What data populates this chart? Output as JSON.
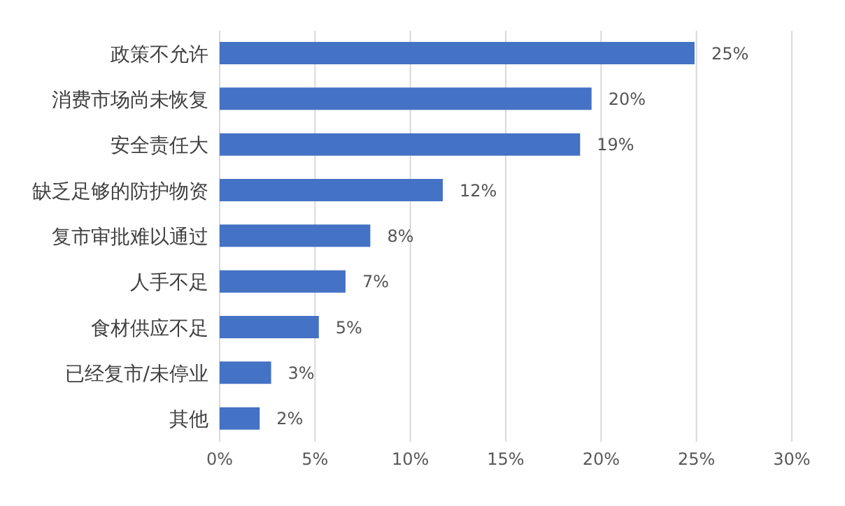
{
  "chart_data": {
    "type": "bar",
    "orientation": "horizontal",
    "categories": [
      "政策不允许",
      "消费市场尚未恢复",
      "安全责任大",
      "缺乏足够的防护物资",
      "复市审批难以通过",
      "人手不足",
      "食材供应不足",
      "已经复市/未停业",
      "其他"
    ],
    "values": [
      24.9,
      19.5,
      18.9,
      11.7,
      7.9,
      6.6,
      5.2,
      2.7,
      2.1
    ],
    "value_labels": [
      "25%",
      "20%",
      "19%",
      "12%",
      "8%",
      "7%",
      "5%",
      "3%",
      "2%"
    ],
    "color": "#4472c4",
    "xlim": [
      0,
      30
    ],
    "xticks": [
      {
        "value": 0,
        "label": "0%"
      },
      {
        "value": 5,
        "label": "5%"
      },
      {
        "value": 10,
        "label": "10%"
      },
      {
        "value": 15,
        "label": "15%"
      },
      {
        "value": 20,
        "label": "20%"
      },
      {
        "value": 25,
        "label": "25%"
      },
      {
        "value": 30,
        "label": "30%"
      }
    ],
    "grid": "x"
  }
}
